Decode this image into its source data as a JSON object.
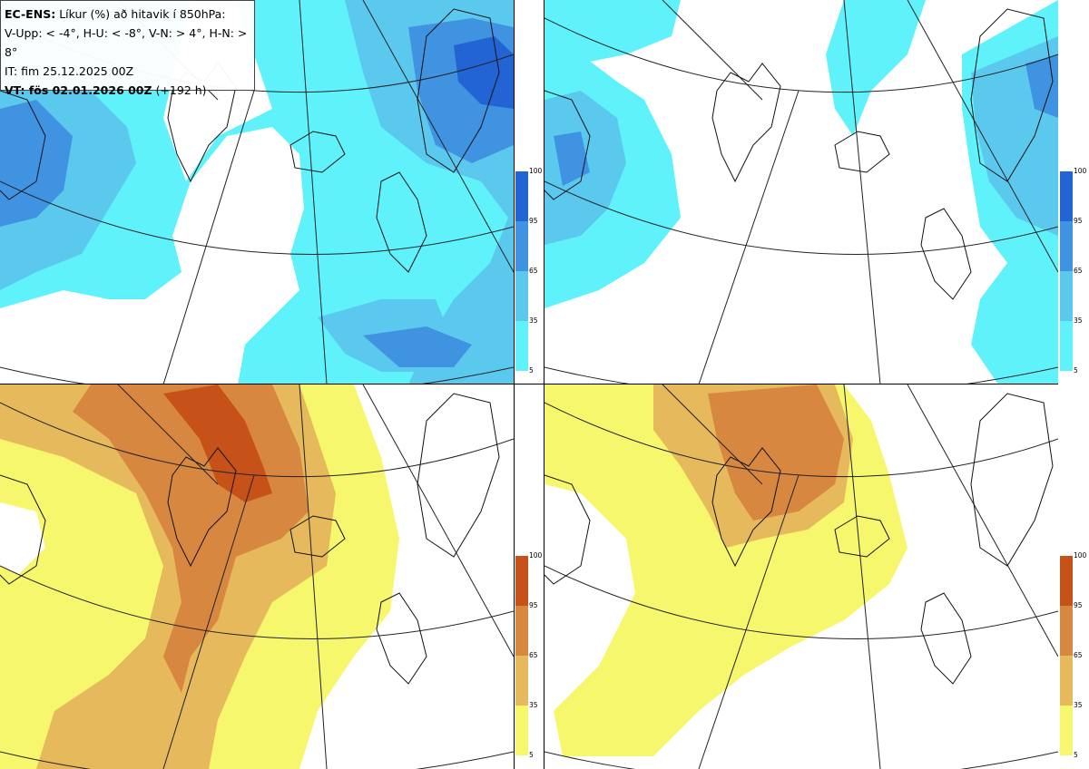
{
  "header": {
    "model": "EC-ENS:",
    "title_rest": "Líkur (%) að hitavik í 850hPa:",
    "thresholds": "V-Upp: < -4°, H-U: < -8°, V-N: > 4°, H-N: > 8°",
    "initial_time": "IT: fim 25.12.2025 00Z",
    "valid_label": "VT: fös 02.01.2026 00Z",
    "lead": "(+192 h)"
  },
  "panels": [
    {
      "id": "V-Upp",
      "description_key": "cold_minus4",
      "palette": "blue"
    },
    {
      "id": "H-U",
      "description_key": "cold_minus8",
      "palette": "blue"
    },
    {
      "id": "V-N",
      "description_key": "warm_plus4",
      "palette": "orange"
    },
    {
      "id": "H-N",
      "description_key": "warm_plus8",
      "palette": "orange"
    }
  ],
  "colorbar": {
    "levels": [
      "5",
      "35",
      "65",
      "95",
      "100"
    ],
    "blue_colors": [
      "#5ff2fa",
      "#5bc9ee",
      "#3f93e0",
      "#2264d3"
    ],
    "orange_colors": [
      "#f7f76e",
      "#e5b95c",
      "#d7873f",
      "#c65119"
    ]
  }
}
